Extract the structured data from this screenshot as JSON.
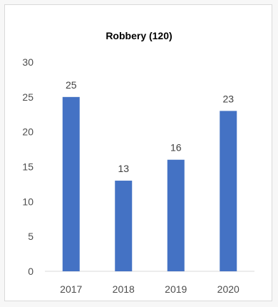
{
  "chart_data": {
    "type": "bar",
    "title": "Robbery (120)",
    "categories": [
      "2017",
      "2018",
      "2019",
      "2020"
    ],
    "values": [
      25,
      13,
      16,
      23
    ],
    "ylim": [
      0,
      30
    ],
    "yticks": [
      0,
      5,
      10,
      15,
      20,
      25,
      30
    ],
    "grid": false,
    "data_labels": true,
    "bar_color": "#4472c4",
    "axis_color": "#d9d9d9",
    "legend": "none"
  }
}
